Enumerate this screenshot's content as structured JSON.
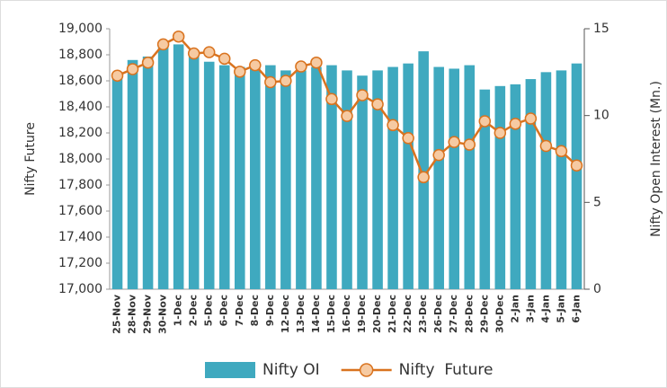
{
  "chart_data": {
    "type": "bar-line",
    "ylabel": "Nifty Future",
    "y2label": "Nifty Open Interest (Mn.)",
    "categories": [
      "25-Nov",
      "28-Nov",
      "29-Nov",
      "30-Nov",
      "1-Dec",
      "2-Dec",
      "5-Dec",
      "6-Dec",
      "7-Dec",
      "8-Dec",
      "9-Dec",
      "12-Dec",
      "13-Dec",
      "14-Dec",
      "15-Dec",
      "16-Dec",
      "19-Dec",
      "20-Dec",
      "21-Dec",
      "22-Dec",
      "23-Dec",
      "26-Dec",
      "27-Dec",
      "28-Dec",
      "29-Dec",
      "30-Dec",
      "2-Jan",
      "3-Jan",
      "4-Jan",
      "5-Jan",
      "6-Jan"
    ],
    "series": [
      {
        "name": "Nifty OI",
        "type": "bar",
        "axis": "y2",
        "color": "#3fa9bf",
        "values": [
          12.4,
          13.2,
          13.4,
          14.0,
          14.1,
          13.4,
          13.1,
          12.9,
          12.8,
          12.8,
          12.9,
          12.6,
          12.6,
          12.8,
          12.9,
          12.6,
          12.3,
          12.6,
          12.8,
          13.0,
          13.7,
          12.8,
          12.7,
          12.9,
          11.5,
          11.7,
          11.8,
          12.1,
          12.5,
          12.6,
          13.0
        ]
      },
      {
        "name": "Nifty  Future",
        "type": "line",
        "color": "#d9731f",
        "values": [
          18640,
          18690,
          18740,
          18880,
          18940,
          18810,
          18820,
          18770,
          18670,
          18720,
          18590,
          18600,
          18710,
          18740,
          18460,
          18330,
          18490,
          18420,
          18260,
          18160,
          17860,
          18030,
          18130,
          18110,
          18290,
          18200,
          18270,
          18310,
          18100,
          18060,
          17950
        ]
      }
    ],
    "ylim": [
      17000,
      19000
    ],
    "yticks": [
      {
        "value": 17000,
        "label": "17,000"
      },
      {
        "value": 17200,
        "label": "17,200"
      },
      {
        "value": 17400,
        "label": "17,400"
      },
      {
        "value": 17600,
        "label": "17,600"
      },
      {
        "value": 17800,
        "label": "17,800"
      },
      {
        "value": 18000,
        "label": "18,000"
      },
      {
        "value": 18200,
        "label": "18,200"
      },
      {
        "value": 18400,
        "label": "18,400"
      },
      {
        "value": 18600,
        "label": "18,600"
      },
      {
        "value": 18800,
        "label": "18,800"
      },
      {
        "value": 19000,
        "label": "19,000"
      }
    ],
    "y2lim": [
      0,
      15
    ],
    "y2ticks": [
      0,
      5,
      10,
      15
    ]
  }
}
